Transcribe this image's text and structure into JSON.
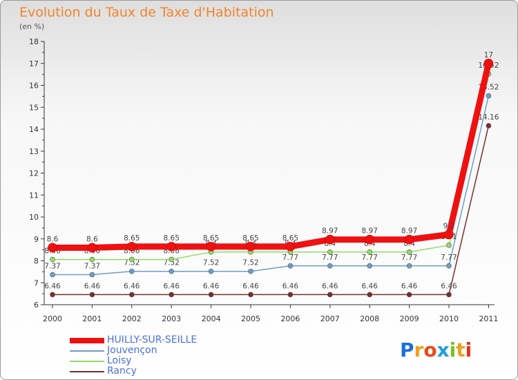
{
  "title": "Evolution du Taux de Taxe d'Habitation",
  "subtitle": "(en %)",
  "colors": {
    "HUILLY-SUR-SEILLE": "#ee1111",
    "Jouvençon": "#6c9ec8",
    "Loisy": "#8fdd60",
    "Rancy": "#7a2c2c"
  },
  "logo": {
    "text": "Proxiti",
    "letters": [
      {
        "ch": "P",
        "color": "#1e6fd8"
      },
      {
        "ch": "r",
        "color": "#f0a020"
      },
      {
        "ch": "o",
        "color": "#e84a1a"
      },
      {
        "ch": "x",
        "color": "#1ea0e0"
      },
      {
        "ch": "i",
        "color": "#78c020"
      },
      {
        "ch": "t",
        "color": "#f0a020"
      },
      {
        "ch": "i",
        "color": "#e8301a"
      }
    ]
  },
  "chart_data": {
    "type": "line",
    "title": "Evolution du Taux de Taxe d'Habitation",
    "ylabel": "(en %)",
    "xlabel": "",
    "x": [
      "2000",
      "2001",
      "2002",
      "2003",
      "2004",
      "2005",
      "2006",
      "2007",
      "2008",
      "2009",
      "2010",
      "2011"
    ],
    "ylim": [
      6,
      18
    ],
    "yticks": [
      6,
      7,
      8,
      9,
      10,
      11,
      12,
      13,
      14,
      15,
      16,
      17,
      18
    ],
    "grid": false,
    "legend_position": "bottom-left",
    "series": [
      {
        "name": "Rancy",
        "values": [
          6.46,
          6.46,
          6.46,
          6.46,
          6.46,
          6.46,
          6.46,
          6.46,
          6.46,
          6.46,
          6.46,
          14.16
        ],
        "labels": [
          "6.46",
          "6.46",
          "6.46",
          "6.46",
          "6.46",
          "6.46",
          "6.46",
          "6.46",
          "6.46",
          "6.46",
          "6.46",
          "14.16"
        ]
      },
      {
        "name": "Jouvençon",
        "values": [
          7.37,
          7.37,
          7.52,
          7.52,
          7.52,
          7.52,
          7.77,
          7.77,
          7.77,
          7.77,
          7.77,
          15.52
        ],
        "labels": [
          "7.37",
          "7.37",
          "7.52",
          "7.52",
          "7.52",
          "7.52",
          "7.77",
          "7.77",
          "7.77",
          "7.77",
          "7.77",
          "15.52"
        ]
      },
      {
        "name": "Loisy",
        "values": [
          8.06,
          8.06,
          8.06,
          8.06,
          8.4,
          8.4,
          8.4,
          8.4,
          8.4,
          8.4,
          8.71,
          16.52
        ],
        "labels": [
          "8.06",
          "8.06",
          "8.06",
          "8.06",
          "8.4",
          "8.4",
          "8.4",
          "8.4",
          "8.4",
          "8.4",
          "8.71",
          "16.52"
        ]
      },
      {
        "name": "HUILLY-SUR-SEILLE",
        "values": [
          8.6,
          8.6,
          8.65,
          8.65,
          8.65,
          8.65,
          8.65,
          8.97,
          8.97,
          8.97,
          9.2,
          17
        ],
        "labels": [
          "8.6",
          "8.6",
          "8.65",
          "8.65",
          "8.65",
          "8.65",
          "8.65",
          "8.97",
          "8.97",
          "8.97",
          "9.2",
          "17"
        ]
      }
    ],
    "legend": [
      "HUILLY-SUR-SEILLE",
      "Jouvençon",
      "Loisy",
      "Rancy"
    ]
  }
}
